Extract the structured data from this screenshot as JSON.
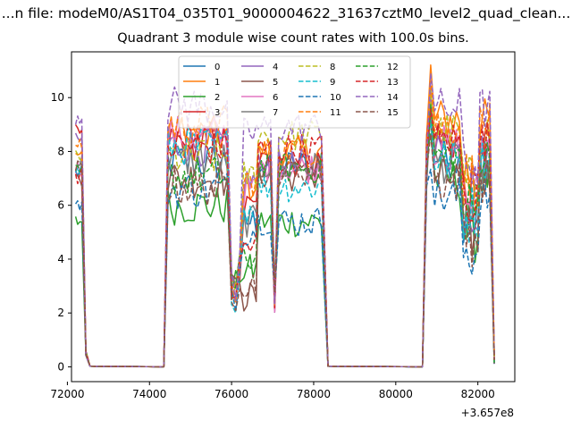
{
  "header": {
    "suptitle": "...n file: modeM0/AS1T04_035T01_9000004622_31637cztM0_level2_quad_clean...",
    "title": "Quadrant 3 module wise count rates with 100.0s bins."
  },
  "chart_data": {
    "type": "line",
    "title": "Quadrant 3 module wise count rates with 100.0s bins.",
    "xlabel": "",
    "ylabel": "",
    "x_offset_label": "+3.657e8",
    "xlim": [
      72100,
      82900
    ],
    "ylim": [
      -0.55,
      11.7
    ],
    "xticks": [
      72000,
      74000,
      76000,
      78000,
      80000,
      82000
    ],
    "yticks": [
      0,
      2,
      4,
      6,
      8,
      10
    ],
    "grid": false,
    "legend_position": "top-center",
    "legend_columns": 4,
    "series": [
      {
        "name": "0",
        "color": "#1f77b4",
        "dash": false
      },
      {
        "name": "1",
        "color": "#ff7f0e",
        "dash": false
      },
      {
        "name": "2",
        "color": "#2ca02c",
        "dash": false
      },
      {
        "name": "3",
        "color": "#d62728",
        "dash": false
      },
      {
        "name": "4",
        "color": "#9467bd",
        "dash": false
      },
      {
        "name": "5",
        "color": "#8c564b",
        "dash": false
      },
      {
        "name": "6",
        "color": "#e377c2",
        "dash": false
      },
      {
        "name": "7",
        "color": "#7f7f7f",
        "dash": false
      },
      {
        "name": "8",
        "color": "#bcbd22",
        "dash": true
      },
      {
        "name": "9",
        "color": "#17becf",
        "dash": true
      },
      {
        "name": "10",
        "color": "#1f77b4",
        "dash": true
      },
      {
        "name": "11",
        "color": "#ff7f0e",
        "dash": true
      },
      {
        "name": "12",
        "color": "#2ca02c",
        "dash": true
      },
      {
        "name": "13",
        "color": "#d62728",
        "dash": true
      },
      {
        "name": "14",
        "color": "#9467bd",
        "dash": true
      },
      {
        "name": "15",
        "color": "#8c564b",
        "dash": true
      }
    ],
    "segment_levels": {
      "seg_a": [
        7.2,
        7.9,
        5.4,
        8.7,
        8.4,
        7.0,
        7.4,
        7.6,
        7.8,
        7.3,
        6.0,
        8.3,
        7.2,
        7.1,
        9.3,
        7.4
      ],
      "seg_b": [
        7.6,
        8.6,
        6.0,
        8.4,
        8.2,
        7.0,
        8.6,
        7.7,
        7.8,
        8.2,
        6.6,
        9.0,
        7.1,
        8.2,
        9.7,
        6.7
      ],
      "seg_c": [
        5.4,
        6.7,
        3.6,
        5.9,
        6.9,
        2.6,
        6.6,
        5.4,
        7.1,
        5.9,
        5.1,
        6.9,
        4.0,
        4.5,
        8.7,
        3.1
      ],
      "seg_d": [
        7.5,
        8.0,
        5.4,
        7.6,
        7.5,
        7.1,
        7.4,
        7.4,
        8.6,
        6.7,
        5.4,
        8.0,
        7.4,
        8.1,
        8.9,
        7.3
      ],
      "seg_e": [
        7.8,
        9.2,
        7.0,
        8.4,
        8.0,
        7.0,
        8.2,
        7.6,
        8.7,
        7.7,
        6.3,
        9.0,
        7.8,
        8.4,
        9.6,
        6.9
      ]
    }
  }
}
